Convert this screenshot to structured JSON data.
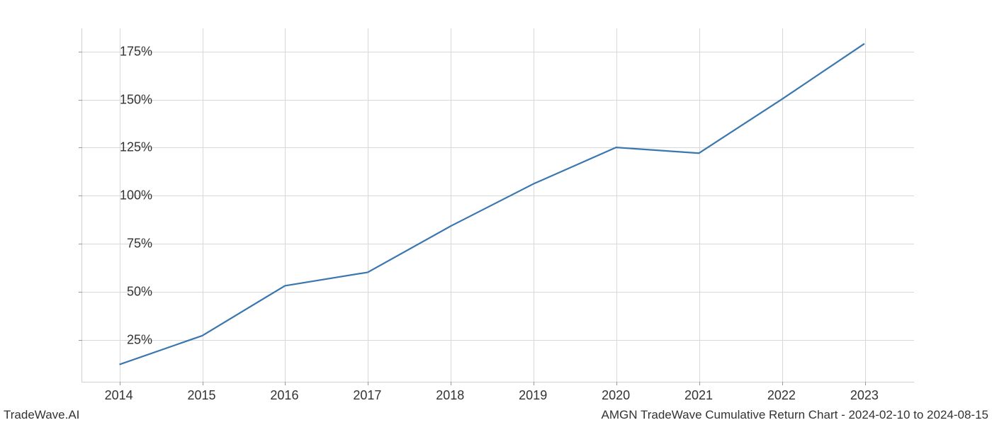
{
  "chart": {
    "type": "line",
    "x_values": [
      2014,
      2015,
      2016,
      2017,
      2018,
      2019,
      2020,
      2021,
      2022,
      2023
    ],
    "y_values": [
      12,
      27,
      53,
      60,
      84,
      106,
      125,
      122,
      150,
      179
    ],
    "line_color": "#3a76af",
    "line_width": 2.2,
    "background_color": "#ffffff",
    "grid_color": "#d8d8d8",
    "axis_color": "#d0d0d0",
    "tick_color": "#999999",
    "text_color": "#333333",
    "x_ticks": [
      2014,
      2015,
      2016,
      2017,
      2018,
      2019,
      2020,
      2021,
      2022,
      2023
    ],
    "x_tick_labels": [
      "2014",
      "2015",
      "2016",
      "2017",
      "2018",
      "2019",
      "2020",
      "2021",
      "2022",
      "2023"
    ],
    "y_ticks": [
      25,
      50,
      75,
      100,
      125,
      150,
      175
    ],
    "y_tick_labels": [
      "25%",
      "50%",
      "75%",
      "100%",
      "125%",
      "150%",
      "175%"
    ],
    "xlim": [
      2013.55,
      2023.6
    ],
    "ylim": [
      3,
      187
    ],
    "tick_fontsize": 18,
    "footer_fontsize": 17
  },
  "footer": {
    "left": "TradeWave.AI",
    "right": "AMGN TradeWave Cumulative Return Chart - 2024-02-10 to 2024-08-15"
  }
}
